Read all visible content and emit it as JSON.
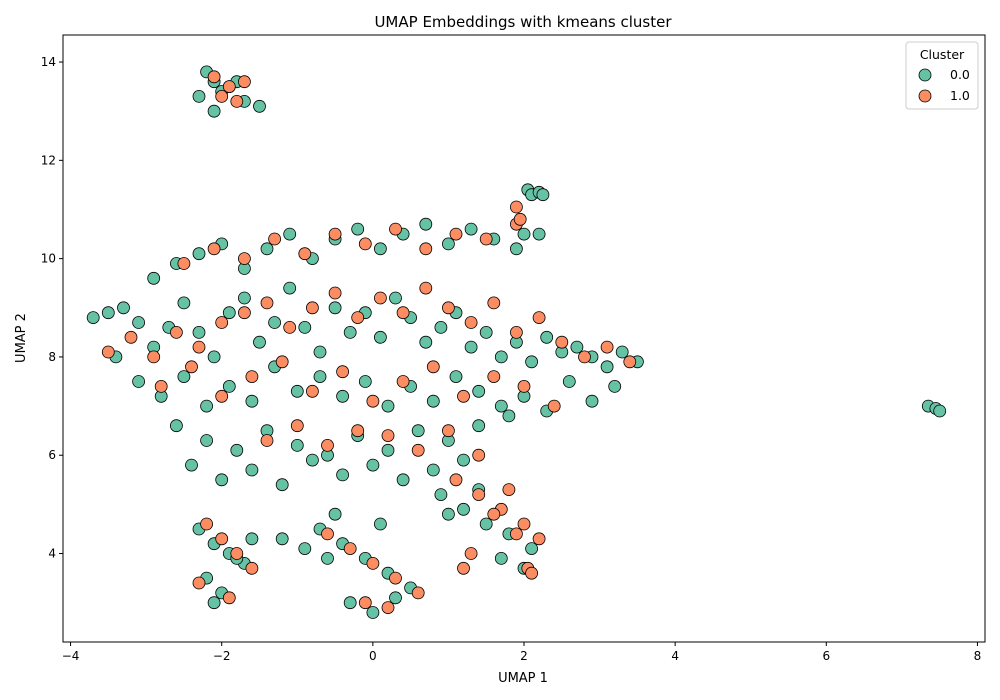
{
  "chart_data": {
    "type": "scatter",
    "title": "UMAP Embeddings with kmeans cluster",
    "xlabel": "UMAP 1",
    "ylabel": "UMAP 2",
    "xlim": [
      -4.1,
      8.1
    ],
    "ylim": [
      2.2,
      14.55
    ],
    "xticks": [
      -4,
      -2,
      0,
      2,
      4,
      6,
      8
    ],
    "yticks": [
      4,
      6,
      8,
      10,
      12,
      14
    ],
    "grid": false,
    "legend": {
      "title": "Cluster",
      "placement": "top-right",
      "entries": [
        {
          "label": "0.0",
          "color": "#66c2a5"
        },
        {
          "label": "1.0",
          "color": "#fc8d62"
        }
      ]
    },
    "marker_edge_color": "#000000",
    "series": [
      {
        "label": "0.0",
        "color": "#66c2a5",
        "x": [
          -3.7,
          -3.5,
          -3.3,
          -3.1,
          -2.9,
          -2.7,
          -2.5,
          -2.3,
          -2.1,
          -1.9,
          -1.7,
          -1.5,
          -1.3,
          -1.1,
          -0.9,
          -0.7,
          -0.5,
          -0.3,
          -0.1,
          0.1,
          0.3,
          0.5,
          0.7,
          0.9,
          1.1,
          1.3,
          1.5,
          1.7,
          1.9,
          2.1,
          2.3,
          2.5,
          2.7,
          2.9,
          3.1,
          3.3,
          3.5,
          -3.4,
          -3.1,
          -2.8,
          -2.5,
          -2.2,
          -1.9,
          -1.6,
          -1.3,
          -1.0,
          -0.7,
          -0.4,
          -0.1,
          0.2,
          0.5,
          0.8,
          1.1,
          1.4,
          1.7,
          2.0,
          2.3,
          2.6,
          2.9,
          3.2,
          -2.9,
          -2.6,
          -2.3,
          -2.0,
          -1.7,
          -1.4,
          -1.1,
          -0.8,
          -0.5,
          -0.2,
          0.1,
          0.4,
          0.7,
          1.0,
          1.3,
          1.6,
          1.9,
          2.2,
          -2.6,
          -2.2,
          -1.8,
          -1.4,
          -1.0,
          -0.6,
          -0.2,
          0.2,
          0.6,
          1.0,
          1.4,
          1.8,
          -2.4,
          -2.0,
          -1.6,
          -1.2,
          -0.8,
          -0.4,
          0.0,
          0.4,
          0.8,
          1.2,
          -2.3,
          -2.1,
          -1.9,
          -1.7,
          -2.2,
          -2.0,
          -1.8,
          -2.1,
          -1.6,
          -2.3,
          -2.1,
          -1.9,
          -1.7,
          -2.2,
          -2.0,
          -1.8,
          -2.1,
          -1.5,
          -1.2,
          -0.9,
          -0.6,
          -0.7,
          -0.4,
          -0.1,
          0.2,
          0.5,
          -0.3,
          0.0,
          0.3,
          -0.5,
          0.1,
          0.9,
          1.2,
          1.5,
          1.8,
          2.1,
          1.0,
          1.4,
          1.7,
          2.0,
          2.05,
          2.1,
          2.2,
          2.25,
          2.0,
          7.35,
          7.45,
          7.5
        ],
        "y": [
          8.8,
          8.9,
          9.0,
          8.7,
          8.2,
          8.6,
          9.1,
          8.5,
          8.0,
          8.9,
          9.2,
          8.3,
          8.7,
          9.4,
          8.6,
          8.1,
          9.0,
          8.5,
          8.9,
          8.4,
          9.2,
          8.8,
          8.3,
          8.6,
          8.9,
          8.2,
          8.5,
          8.0,
          8.3,
          7.9,
          8.4,
          8.1,
          8.2,
          8.0,
          7.8,
          8.1,
          7.9,
          8.0,
          7.5,
          7.2,
          7.6,
          7.0,
          7.4,
          7.1,
          7.8,
          7.3,
          7.6,
          7.2,
          7.5,
          7.0,
          7.4,
          7.1,
          7.6,
          7.3,
          7.0,
          7.2,
          6.9,
          7.5,
          7.1,
          7.4,
          9.6,
          9.9,
          10.1,
          10.3,
          9.8,
          10.2,
          10.5,
          10.0,
          10.4,
          10.6,
          10.2,
          10.5,
          10.7,
          10.3,
          10.6,
          10.4,
          10.2,
          10.5,
          6.6,
          6.3,
          6.1,
          6.5,
          6.2,
          6.0,
          6.4,
          6.1,
          6.5,
          6.3,
          6.6,
          6.8,
          5.8,
          5.5,
          5.7,
          5.4,
          5.9,
          5.6,
          5.8,
          5.5,
          5.7,
          5.9,
          4.5,
          4.2,
          4.0,
          3.8,
          3.5,
          3.2,
          3.9,
          3.0,
          4.3,
          13.3,
          13.6,
          13.5,
          13.2,
          13.8,
          13.4,
          13.6,
          13.0,
          13.1,
          4.3,
          4.1,
          3.9,
          4.5,
          4.2,
          3.9,
          3.6,
          3.3,
          3.0,
          2.8,
          3.1,
          4.8,
          4.6,
          5.2,
          4.9,
          4.6,
          4.4,
          4.1,
          4.8,
          5.3,
          3.9,
          3.7,
          11.4,
          11.3,
          11.35,
          11.3,
          10.5,
          7.0,
          6.95,
          6.9
        ]
      },
      {
        "label": "1.0",
        "color": "#fc8d62",
        "x": [
          -3.5,
          -3.2,
          -2.9,
          -2.6,
          -2.3,
          -2.0,
          -1.7,
          -1.4,
          -1.1,
          -0.8,
          -0.5,
          -0.2,
          0.1,
          0.4,
          0.7,
          1.0,
          1.3,
          1.6,
          1.9,
          2.2,
          2.5,
          2.8,
          3.1,
          3.4,
          -2.8,
          -2.4,
          -2.0,
          -1.6,
          -1.2,
          -0.8,
          -0.4,
          0.0,
          0.4,
          0.8,
          1.2,
          1.6,
          2.0,
          2.4,
          -2.5,
          -2.1,
          -1.7,
          -1.3,
          -0.9,
          -0.5,
          -0.1,
          0.3,
          0.7,
          1.1,
          1.5,
          1.9,
          -1.4,
          -1.0,
          -0.6,
          -0.2,
          0.2,
          0.6,
          1.0,
          1.4,
          -2.2,
          -2.0,
          -1.8,
          -1.6,
          -2.3,
          -1.9,
          -2.1,
          -1.9,
          -1.7,
          -2.0,
          -1.8,
          -0.6,
          -0.3,
          0.0,
          0.3,
          0.6,
          -0.1,
          0.2,
          1.1,
          1.4,
          1.7,
          2.0,
          2.2,
          1.3,
          1.6,
          1.9,
          1.2,
          1.8,
          2.05,
          2.1,
          1.9,
          1.95
        ],
        "y": [
          8.1,
          8.4,
          8.0,
          8.5,
          8.2,
          8.7,
          8.9,
          9.1,
          8.6,
          9.0,
          9.3,
          8.8,
          9.2,
          8.9,
          9.4,
          9.0,
          8.7,
          9.1,
          8.5,
          8.8,
          8.3,
          8.0,
          8.2,
          7.9,
          7.4,
          7.8,
          7.2,
          7.6,
          7.9,
          7.3,
          7.7,
          7.1,
          7.5,
          7.8,
          7.2,
          7.6,
          7.4,
          7.0,
          9.9,
          10.2,
          10.0,
          10.4,
          10.1,
          10.5,
          10.3,
          10.6,
          10.2,
          10.5,
          10.4,
          10.7,
          6.3,
          6.6,
          6.2,
          6.5,
          6.4,
          6.1,
          6.5,
          6.0,
          4.6,
          4.3,
          4.0,
          3.7,
          3.4,
          3.1,
          13.7,
          13.5,
          13.6,
          13.3,
          13.2,
          4.4,
          4.1,
          3.8,
          3.5,
          3.2,
          3.0,
          2.9,
          5.5,
          5.2,
          4.9,
          4.6,
          4.3,
          4.0,
          4.8,
          4.4,
          3.7,
          5.3,
          3.7,
          3.6,
          11.05,
          10.8
        ]
      }
    ]
  }
}
